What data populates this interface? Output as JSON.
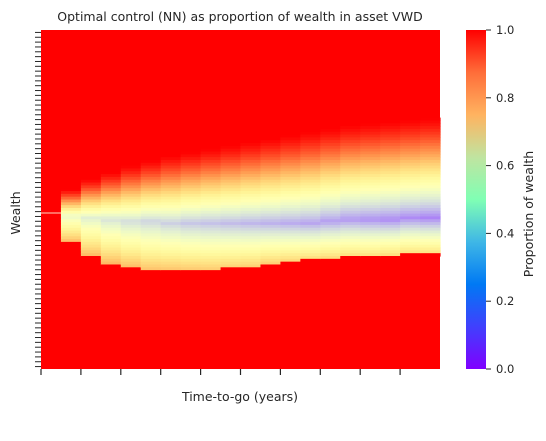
{
  "chart_data": {
    "type": "heatmap",
    "title": "Optimal control (NN) as proportion of wealth in asset VWD",
    "xlabel": "Time-to-go (years)",
    "ylabel": "Wealth",
    "x_tick_labels": [],
    "y_tick_labels": [],
    "colormap": "rainbow",
    "colorbar": {
      "label": "Proportion of wealth",
      "range": [
        0.0,
        1.0
      ],
      "ticks": [
        "0.0",
        "0.2",
        "0.4",
        "0.6",
        "0.8",
        "1.0"
      ]
    },
    "n_time_columns": 20,
    "note_axes": "x = column index (time-to-go increasing left to right), y = wealth bin index (0 = top, 1 = bottom)",
    "band_profile": {
      "columns": [
        0,
        1,
        2,
        3,
        4,
        5,
        6,
        7,
        8,
        9,
        10,
        11,
        12,
        13,
        14,
        15,
        16,
        17,
        18,
        19
      ],
      "band_top": [
        null,
        0.47,
        0.44,
        0.42,
        0.4,
        0.385,
        0.37,
        0.36,
        0.35,
        0.34,
        0.33,
        0.32,
        0.31,
        0.3,
        0.29,
        0.28,
        0.275,
        0.27,
        0.265,
        0.26
      ],
      "band_center": [
        null,
        0.55,
        0.555,
        0.56,
        0.565,
        0.565,
        0.57,
        0.57,
        0.57,
        0.57,
        0.57,
        0.57,
        0.57,
        0.57,
        0.565,
        0.56,
        0.56,
        0.56,
        0.555,
        0.555
      ],
      "band_bottom": [
        null,
        0.64,
        0.68,
        0.7,
        0.71,
        0.72,
        0.72,
        0.72,
        0.72,
        0.715,
        0.71,
        0.7,
        0.695,
        0.69,
        0.685,
        0.68,
        0.68,
        0.675,
        0.67,
        0.67
      ],
      "min_value": [
        1.0,
        0.42,
        0.38,
        0.35,
        0.33,
        0.31,
        0.3,
        0.28,
        0.27,
        0.26,
        0.25,
        0.24,
        0.23,
        0.22,
        0.21,
        0.2,
        0.19,
        0.18,
        0.18,
        0.17
      ]
    }
  }
}
